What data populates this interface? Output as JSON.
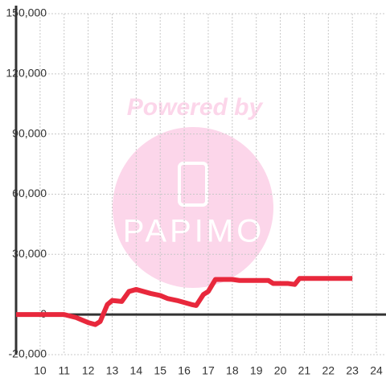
{
  "chart_data": {
    "type": "line",
    "watermark": [
      "Powered by",
      "PAPIMO"
    ],
    "x": [
      9,
      11,
      11.5,
      12,
      12.3,
      12.5,
      12.8,
      13,
      13.4,
      13.7,
      14,
      14.3,
      14.6,
      15,
      15.3,
      15.7,
      16,
      16.3,
      16.5,
      16.8,
      17,
      17.3,
      18,
      18.3,
      19.5,
      19.7,
      20.3,
      20.6,
      20.8,
      23
    ],
    "series": [
      {
        "color": "#e8283c",
        "values": [
          0,
          0,
          -1500,
          -4000,
          -5000,
          -3500,
          5000,
          7000,
          6500,
          11500,
          12500,
          11500,
          10500,
          9500,
          8000,
          7000,
          6000,
          5000,
          4500,
          10000,
          11500,
          17500,
          17500,
          17000,
          17000,
          15500,
          15500,
          15000,
          18000,
          18000
        ]
      }
    ],
    "xlim": [
      9,
      24.4
    ],
    "ylim": [
      -20000,
      150000
    ],
    "xticks": [
      10,
      11,
      12,
      13,
      14,
      15,
      16,
      17,
      18,
      19,
      20,
      21,
      22,
      23,
      24
    ],
    "yticks": [
      {
        "value": -20000,
        "label": "-20,000"
      },
      0,
      {
        "value": 30000,
        "label": "30,000"
      },
      {
        "value": 60000,
        "label": "60,000"
      },
      {
        "value": 90000,
        "label": "90,000"
      },
      {
        "value": 120000,
        "label": "120,000"
      },
      {
        "value": 150000,
        "label": "150,000"
      }
    ],
    "grid": true
  }
}
